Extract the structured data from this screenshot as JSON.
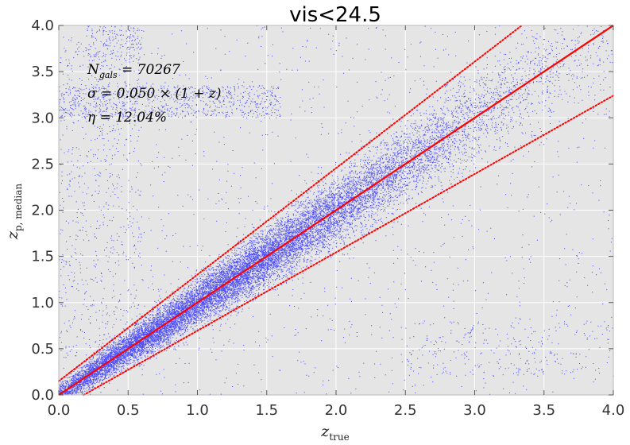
{
  "chart_data": {
    "type": "scatter",
    "title": "vis<24.5",
    "xlabel": "z",
    "xlabel_sub": "true",
    "ylabel": "z",
    "ylabel_sub": "p, median",
    "xlim": [
      0.0,
      4.0
    ],
    "ylim": [
      0.0,
      4.0
    ],
    "x_ticks": [
      "0.0",
      "0.5",
      "1.0",
      "1.5",
      "2.0",
      "2.5",
      "3.0",
      "3.5",
      "4.0"
    ],
    "y_ticks": [
      "0.0",
      "0.5",
      "1.0",
      "1.5",
      "2.0",
      "2.5",
      "3.0",
      "3.5",
      "4.0"
    ],
    "grid": true,
    "background": "#e5e5e5",
    "colors": {
      "points": "#3333ff",
      "one_to_one": "#ff0000",
      "outlier_bounds": "#ff0000"
    },
    "annotations": [
      {
        "text": "N",
        "sub": "gals",
        "rest": " = 70267"
      },
      {
        "text": "σ = 0.050 × (1 + z)"
      },
      {
        "text": "η = 12.04%"
      }
    ],
    "lines": [
      {
        "kind": "one-to-one",
        "style": "solid",
        "x": [
          0.0,
          4.0
        ],
        "y": [
          0.0,
          4.0
        ]
      },
      {
        "kind": "upper-outlier-bound",
        "style": "dotted",
        "x": [
          0.0,
          3.34
        ],
        "y": [
          0.15,
          4.0
        ]
      },
      {
        "kind": "lower-outlier-bound",
        "style": "dotted",
        "x": [
          0.18,
          4.0
        ],
        "y": [
          0.0,
          3.24
        ]
      }
    ],
    "scatter_distribution": {
      "n_gals": 70267,
      "sigma_coeff": 0.05,
      "outlier_fraction": 0.1204,
      "core_density_by_z": [
        [
          0.1,
          0.55
        ],
        [
          0.3,
          0.85
        ],
        [
          0.6,
          1.0
        ],
        [
          1.0,
          1.0
        ],
        [
          1.4,
          0.95
        ],
        [
          1.8,
          0.8
        ],
        [
          2.2,
          0.55
        ],
        [
          2.6,
          0.35
        ],
        [
          3.0,
          0.22
        ],
        [
          3.4,
          0.12
        ],
        [
          3.8,
          0.06
        ]
      ],
      "outlier_clusters": [
        {
          "x_range": [
            0.0,
            1.6
          ],
          "y_range": [
            3.0,
            3.35
          ],
          "weight": 0.25
        },
        {
          "x_range": [
            0.0,
            0.6
          ],
          "y_range": [
            0.4,
            3.9
          ],
          "weight": 0.2
        },
        {
          "x_range": [
            0.2,
            0.6
          ],
          "y_range": [
            3.6,
            4.0
          ],
          "weight": 0.05
        },
        {
          "x_range": [
            2.5,
            4.0
          ],
          "y_range": [
            0.2,
            0.8
          ],
          "weight": 0.08
        },
        {
          "x_range": [
            0.0,
            4.0
          ],
          "y_range": [
            0.0,
            4.0
          ],
          "weight": 0.42
        }
      ]
    }
  }
}
